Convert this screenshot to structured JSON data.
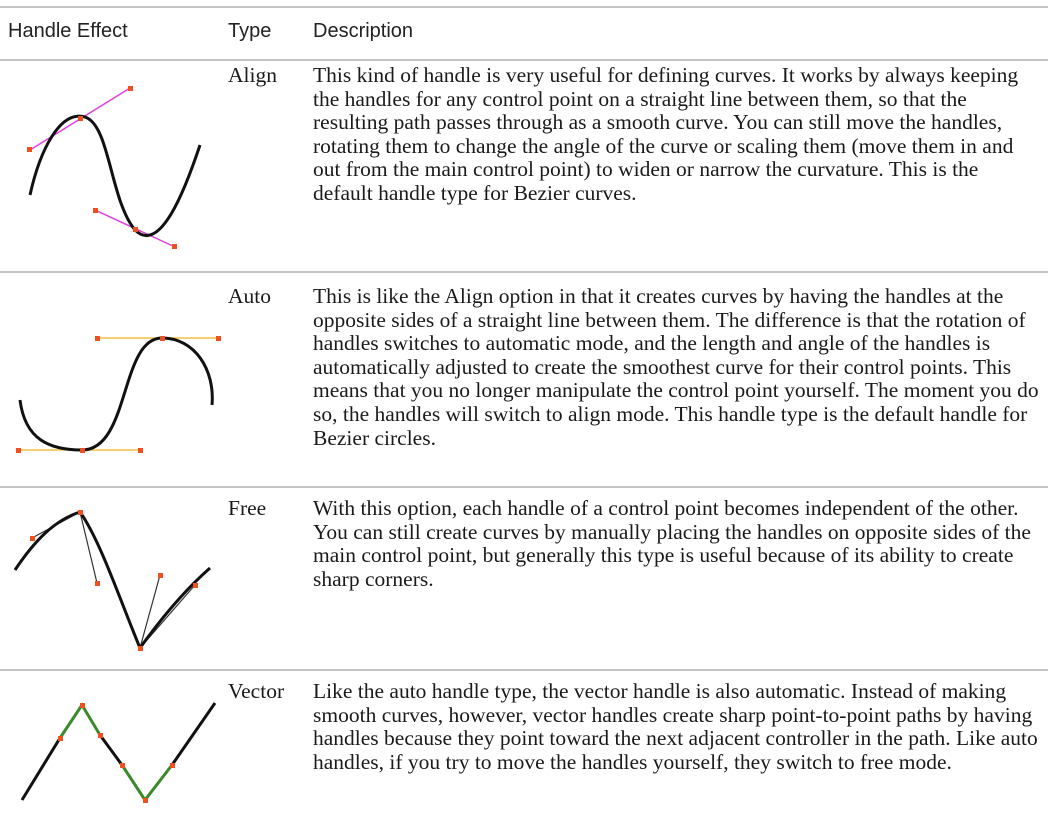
{
  "header": {
    "columns": [
      "Handle Effect",
      "Type",
      "Description"
    ]
  },
  "rows": [
    {
      "type": "Align",
      "description": "This kind of handle is very useful for defining curves. It works by always keeping the handles for any control point on a straight line between them, so that the resulting path passes through as a smooth curve. You can still move the handles, rotating them to change the angle of the curve or scaling them (move them in and out from the main control point) to widen or narrow the curvature. This is the default handle type for Bezier curves."
    },
    {
      "type": "Auto",
      "description": "This is like the Align option in that it creates curves by having the handles at the opposite sides of a straight line between them. The difference is that the rotation of handles switches to automatic mode, and the length and angle of the handles is automatically adjusted to create the smoothest curve for their control points. This means that you no longer manipulate the control point yourself. The moment you do so, the handles will switch to align mode. This handle type is the default handle for Bezier circles."
    },
    {
      "type": "Free",
      "description": "With this option, each handle of a control point becomes independent of the other. You can still create curves by manually placing the handles on opposite sides of the main control point, but generally this type is useful because of its ability to create sharp corners."
    },
    {
      "type": "Vector",
      "description": "Like the auto handle type, the vector handle is also automatic. Instead of making smooth curves, however, vector handles create sharp point-to-point paths by having handles because they point toward the next adjacent controller in the path. Like auto handles, if you try to move the handles yourself, they switch to free mode."
    }
  ]
}
